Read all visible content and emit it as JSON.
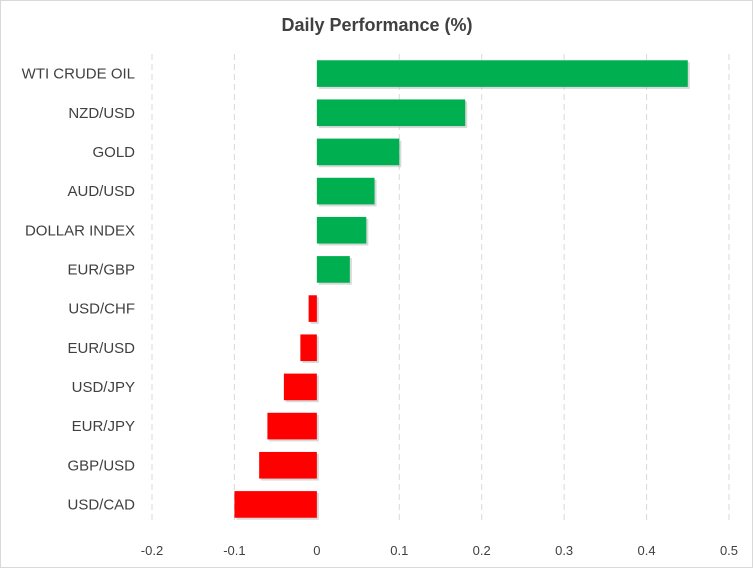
{
  "chart_data": {
    "type": "bar",
    "orientation": "horizontal",
    "title": "Daily Performance  (%)",
    "xlabel": "",
    "ylabel": "",
    "categories": [
      "WTI CRUDE OIL",
      "NZD/USD",
      "GOLD",
      "AUD/USD",
      "DOLLAR INDEX",
      "EUR/GBP",
      "USD/CHF",
      "EUR/USD",
      "USD/JPY",
      "EUR/JPY",
      "GBP/USD",
      "USD/CAD"
    ],
    "values": [
      0.45,
      0.18,
      0.1,
      0.07,
      0.06,
      0.04,
      -0.01,
      -0.02,
      -0.04,
      -0.06,
      -0.07,
      -0.1
    ],
    "xlim": [
      -0.2,
      0.5
    ],
    "x_ticks": [
      -0.2,
      -0.1,
      0,
      0.1,
      0.2,
      0.3,
      0.4,
      0.5
    ],
    "x_tick_labels": [
      "-0.2",
      "-0.1",
      "0",
      "0.1",
      "0.2",
      "0.3",
      "0.4",
      "0.5"
    ],
    "grid": "vertical-dashed",
    "legend": "none",
    "colors": {
      "positive": "#00b050",
      "negative": "#ff0000"
    }
  }
}
